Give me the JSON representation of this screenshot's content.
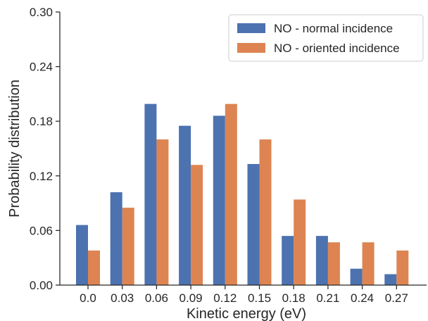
{
  "chart_data": {
    "type": "bar",
    "xlabel": "Kinetic energy (eV)",
    "ylabel": "Probability distribution",
    "categories": [
      "0.0",
      "0.03",
      "0.06",
      "0.09",
      "0.12",
      "0.15",
      "0.18",
      "0.21",
      "0.24",
      "0.27"
    ],
    "series": [
      {
        "name": "NO - normal incidence",
        "color": "#4c72b0",
        "values": [
          0.066,
          0.102,
          0.199,
          0.175,
          0.186,
          0.133,
          0.054,
          0.054,
          0.018,
          0.012
        ]
      },
      {
        "name": "NO - oriented incidence",
        "color": "#dd8452",
        "values": [
          0.038,
          0.085,
          0.16,
          0.132,
          0.199,
          0.16,
          0.094,
          0.047,
          0.047,
          0.038
        ]
      }
    ],
    "ylim": [
      0.0,
      0.3
    ],
    "yticks": [
      "0.00",
      "0.06",
      "0.12",
      "0.18",
      "0.24",
      "0.30"
    ],
    "legend": "top-right",
    "grid": false
  }
}
